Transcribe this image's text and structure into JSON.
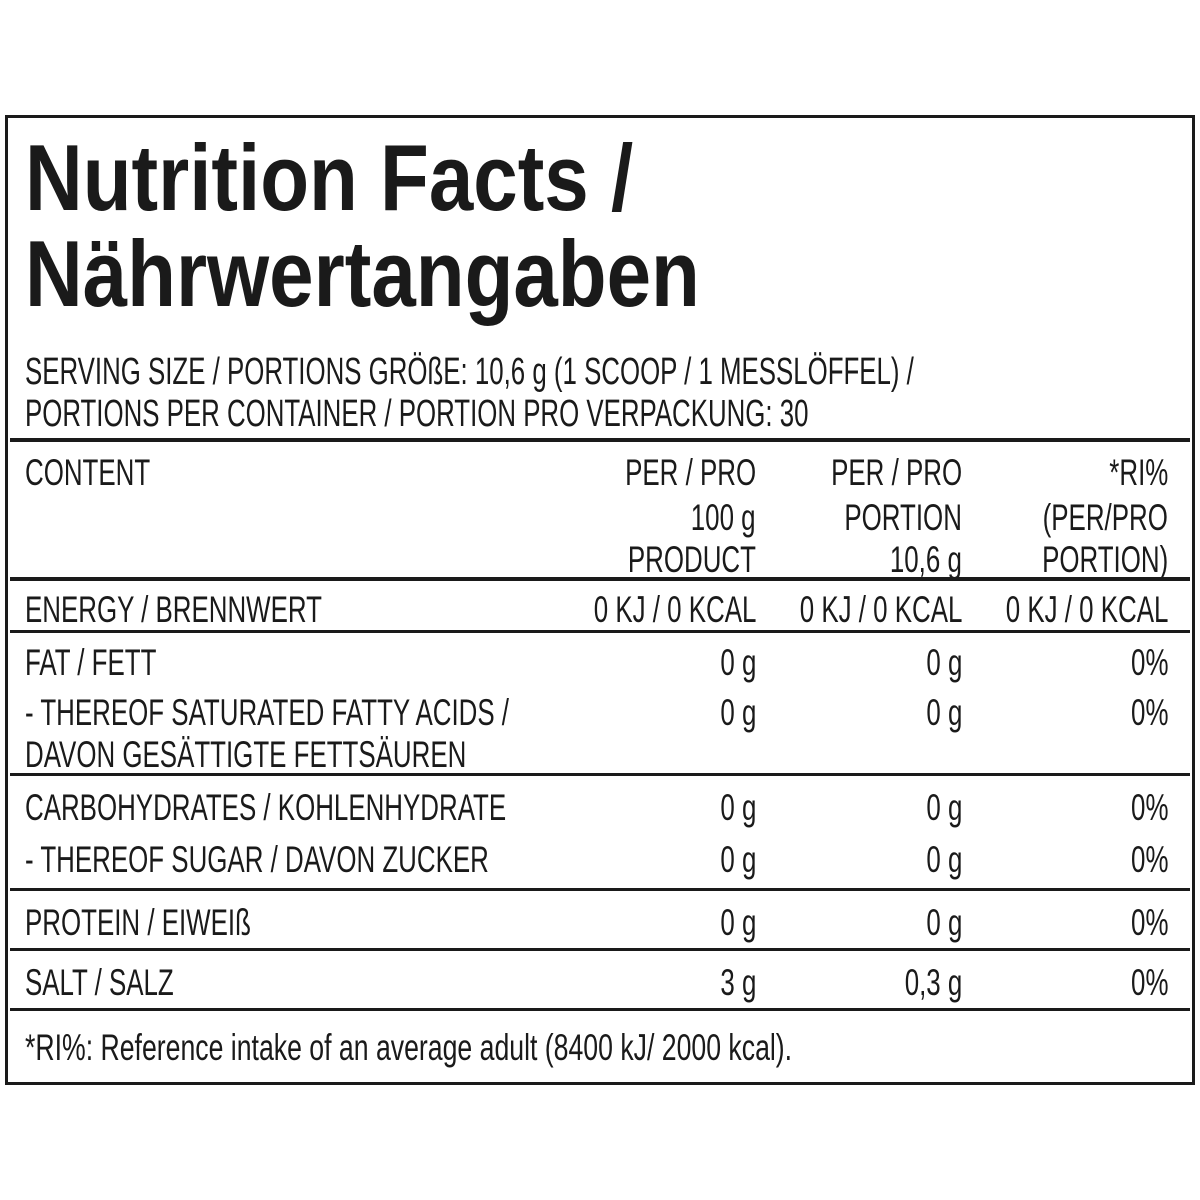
{
  "header": {
    "title": [
      "Nutrition Facts /",
      "Nährwertangaben"
    ],
    "serving": [
      "SERVING SIZE / PORTIONS GRÖßE: 10,6 g (1 SCOOP / 1 MESSLÖFFEL) /",
      "PORTIONS PER CONTAINER / PORTION PRO VERPACKUNG: 30"
    ]
  },
  "table": {
    "columns": [
      [
        "CONTENT"
      ],
      [
        "PER / PRO",
        "100 g",
        "PRODUCT"
      ],
      [
        "PER / PRO",
        "PORTION",
        "10,6 g"
      ],
      [
        "*RI%",
        "(PER/PRO",
        "PORTION)"
      ]
    ],
    "rows": [
      {
        "label": [
          "ENERGY / BRENNWERT"
        ],
        "values": [
          "0 KJ / 0 KCAL",
          "0 KJ / 0 KCAL",
          "0 KJ / 0 KCAL"
        ]
      },
      {
        "label": [
          "FAT / FETT"
        ],
        "values": [
          "0 g",
          "0 g",
          "0%"
        ]
      },
      {
        "label": [
          "- THEREOF SATURATED FATTY ACIDS /",
          "DAVON GESÄTTIGTE FETTSÄUREN"
        ],
        "values": [
          "0 g",
          "0 g",
          "0%"
        ]
      },
      {
        "label": [
          "CARBOHYDRATES / KOHLENHYDRATE"
        ],
        "values": [
          "0 g",
          "0 g",
          "0%"
        ]
      },
      {
        "label": [
          "- THEREOF SUGAR / DAVON ZUCKER"
        ],
        "values": [
          "0 g",
          "0 g",
          "0%"
        ]
      },
      {
        "label": [
          "PROTEIN / EIWEIß"
        ],
        "values": [
          "0 g",
          "0 g",
          "0%"
        ]
      },
      {
        "label": [
          "SALT / SALZ"
        ],
        "values": [
          "3 g",
          "0,3 g",
          "0%"
        ]
      }
    ]
  },
  "footnote": "*RI%: Reference intake of an average adult (8400 kJ/ 2000 kcal)."
}
